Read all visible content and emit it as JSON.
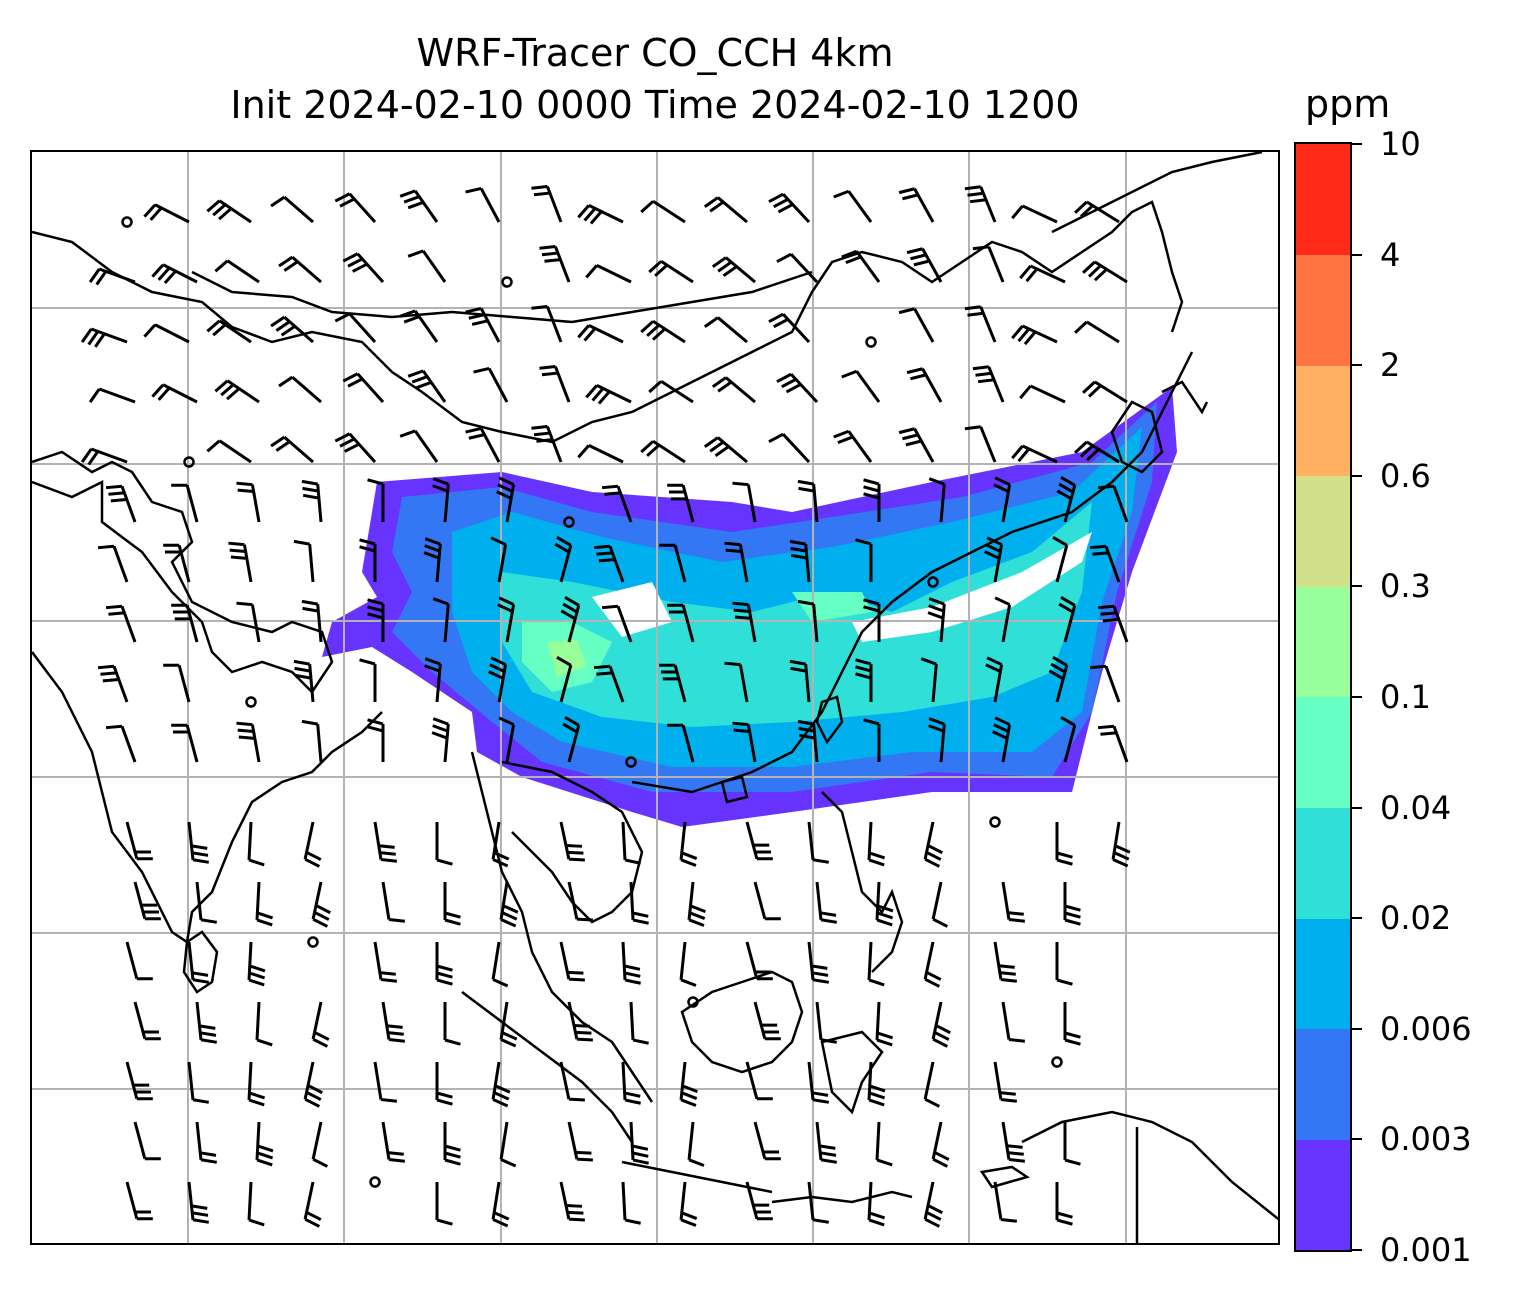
{
  "title": {
    "line1": "WRF-Tracer CO_CCH 4km",
    "line2": "Init 2024-02-10 0000 Time 2024-02-10 1200"
  },
  "colorbar": {
    "unit": "ppm",
    "levels": [
      "0.001",
      "0.003",
      "0.006",
      "0.02",
      "0.04",
      "0.1",
      "0.3",
      "0.6",
      "2",
      "4",
      "10"
    ],
    "colors": [
      "#6633ff",
      "#3377f5",
      "#00b0ee",
      "#30e0d8",
      "#66ffc4",
      "#99ff99",
      "#d2e08a",
      "#ffb060",
      "#ff7440",
      "#ff2a18"
    ]
  },
  "map": {
    "projection_grid": "on",
    "coastline_color": "#000000",
    "grid_color": "#b3b3b3",
    "variable": "CO_CCH tracer concentration with wind barbs"
  }
}
